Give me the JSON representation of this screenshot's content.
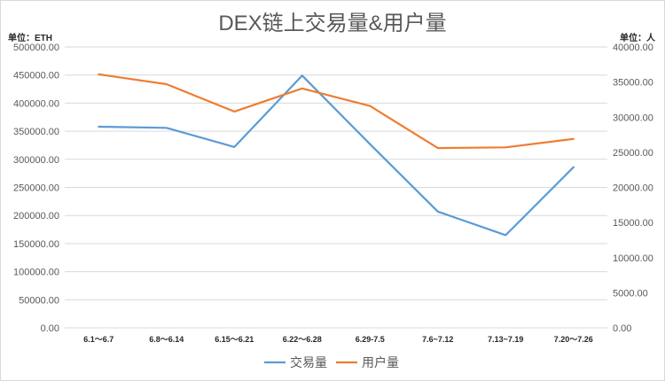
{
  "chart_data": {
    "type": "line",
    "title": "DEX链上交易量&用户量",
    "categories": [
      "6.1～6.7",
      "6.8～6.14",
      "6.15～6.21",
      "6.22～6.28",
      "6.29-7.5",
      "7.6~7.12",
      "7.13~7.19",
      "7.20～7.26"
    ],
    "left_axis": {
      "unit_label": "单位：ETH",
      "ylim": [
        0,
        500000
      ],
      "ticks": [
        "0.00",
        "50000.00",
        "100000.00",
        "150000.00",
        "200000.00",
        "250000.00",
        "300000.00",
        "350000.00",
        "400000.00",
        "450000.00",
        "500000.00"
      ]
    },
    "right_axis": {
      "unit_label": "单位：人",
      "ylim": [
        0,
        40000
      ],
      "ticks": [
        "0.00",
        "5000.00",
        "10000.00",
        "15000.00",
        "20000.00",
        "25000.00",
        "30000.00",
        "35000.00",
        "40000.00"
      ]
    },
    "series": [
      {
        "name": "交易量",
        "axis": "left",
        "color": "#5b9bd5",
        "values": [
          358000,
          356000,
          322000,
          449000,
          327000,
          207000,
          165000,
          286000
        ]
      },
      {
        "name": "用户量",
        "axis": "right",
        "color": "#ed7d31",
        "values": [
          36100,
          34700,
          30800,
          34100,
          31600,
          25600,
          25700,
          26900
        ]
      }
    ],
    "grid": true,
    "legend_position": "bottom"
  }
}
